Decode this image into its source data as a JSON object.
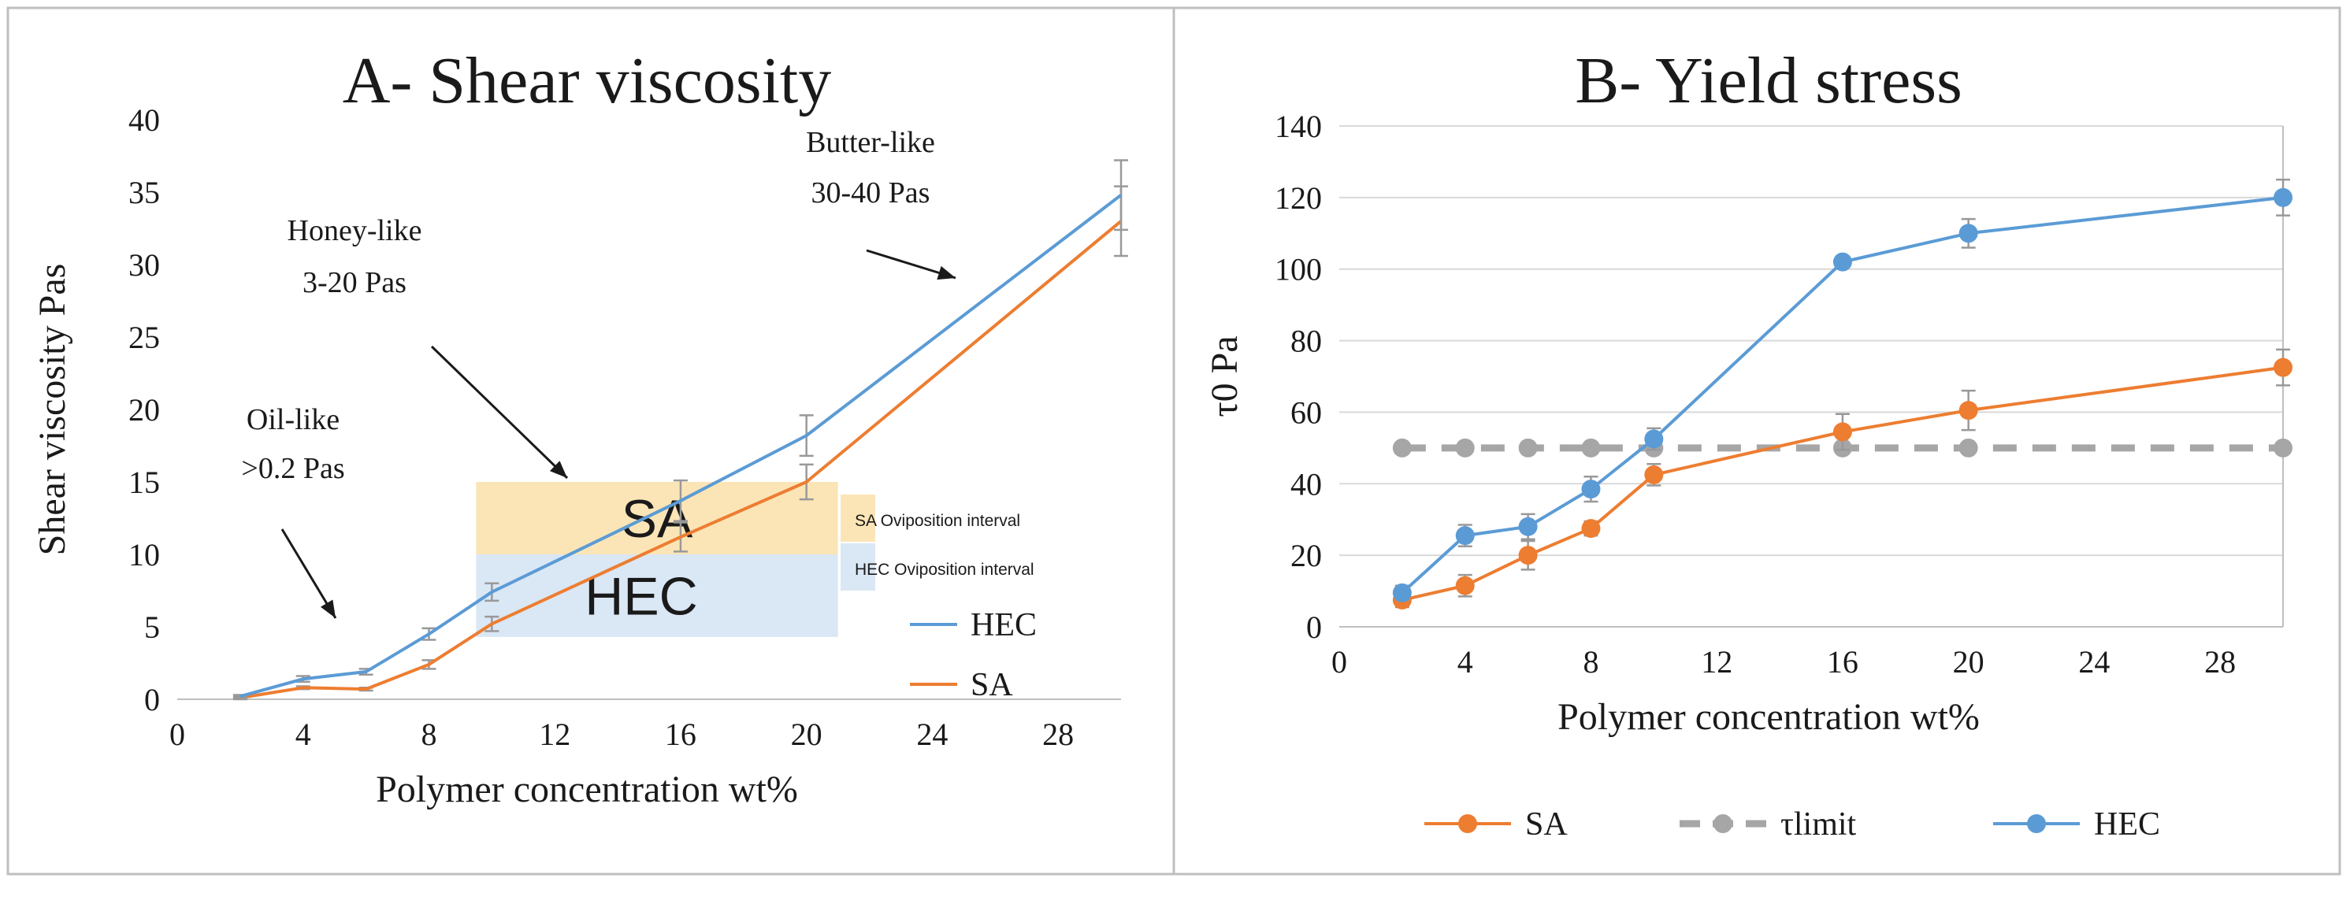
{
  "chart_data": [
    {
      "type": "line",
      "title": "A- Shear viscosity",
      "xlabel": "Polymer concentration wt%",
      "ylabel": "Shear viscosity Pas",
      "xlim": [
        0,
        30
      ],
      "ylim": [
        0,
        40
      ],
      "xticks": [
        "0",
        "4",
        "8",
        "12",
        "16",
        "20",
        "24",
        "28"
      ],
      "yticks": [
        "0",
        "5",
        "10",
        "15",
        "20",
        "25",
        "30",
        "35",
        "40"
      ],
      "series": [
        {
          "name": "HEC",
          "color": "#5b9bd5",
          "x": [
            2,
            4,
            6,
            8,
            10,
            16,
            20,
            30
          ],
          "y": [
            0.2,
            1.4,
            1.9,
            4.5,
            7.4,
            13.7,
            18.2,
            34.8
          ],
          "err": [
            0.1,
            0.2,
            0.2,
            0.4,
            0.6,
            1.4,
            1.4,
            2.4
          ]
        },
        {
          "name": "SA",
          "color": "#ed7d31",
          "x": [
            2,
            4,
            6,
            8,
            10,
            16,
            20,
            30
          ],
          "y": [
            0.1,
            0.8,
            0.7,
            2.4,
            5.2,
            11.2,
            15.0,
            33.0
          ],
          "err": [
            0.1,
            0.1,
            0.1,
            0.3,
            0.5,
            1.0,
            1.2,
            2.4
          ]
        }
      ],
      "legend": [
        {
          "label": "HEC",
          "color": "#5b9bd5"
        },
        {
          "label": "SA",
          "color": "#ed7d31"
        }
      ],
      "regions": [
        {
          "label": "SA",
          "color": "#fbe5b6",
          "x": [
            9.5,
            21
          ],
          "y": [
            10,
            15
          ]
        },
        {
          "label": "HEC",
          "color": "#dae7f5",
          "x": [
            9.5,
            21
          ],
          "y": [
            4.3,
            10
          ]
        }
      ],
      "region_legend": [
        {
          "label": "SA Oviposition interval",
          "color": "#fbe5b6"
        },
        {
          "label": "HEC Oviposition interval",
          "color": "#dae7f5"
        }
      ],
      "annotations": [
        {
          "line1": "Oil-like",
          "line2": ">0.2 Pas"
        },
        {
          "line1": "Honey-like",
          "line2": "3-20 Pas"
        },
        {
          "line1": "Butter-like",
          "line2": "30-40 Pas"
        }
      ]
    },
    {
      "type": "line",
      "title": "B- Yield stress",
      "xlabel": "Polymer concentration wt%",
      "ylabel": "τ0 Pa",
      "xlim": [
        0,
        30
      ],
      "ylim": [
        0,
        140
      ],
      "xticks": [
        "0",
        "4",
        "8",
        "12",
        "16",
        "20",
        "24",
        "28"
      ],
      "yticks": [
        "0",
        "20",
        "40",
        "60",
        "80",
        "100",
        "120",
        "140"
      ],
      "series": [
        {
          "name": "SA",
          "color": "#ed7d31",
          "dash": false,
          "x": [
            2,
            4,
            6,
            8,
            10,
            16,
            20,
            30
          ],
          "y": [
            7.5,
            11.5,
            20,
            27.5,
            42.5,
            54.5,
            60.5,
            72.5
          ],
          "err": [
            2,
            3,
            4,
            2,
            3,
            5,
            5.5,
            5
          ]
        },
        {
          "name": "τlimit",
          "color": "#a6a6a6",
          "dash": true,
          "x": [
            2,
            4,
            6,
            8,
            10,
            16,
            20,
            30
          ],
          "y": [
            50,
            50,
            50,
            50,
            50,
            50,
            50,
            50
          ],
          "err": [
            0,
            0,
            0,
            0,
            0,
            0,
            0,
            0
          ]
        },
        {
          "name": "HEC",
          "color": "#5b9bd5",
          "dash": false,
          "x": [
            2,
            4,
            6,
            8,
            10,
            16,
            20,
            30
          ],
          "y": [
            9.5,
            25.5,
            28,
            38.5,
            52.5,
            102,
            110,
            120
          ],
          "err": [
            2,
            3,
            3.5,
            3.5,
            3,
            1.5,
            4,
            5
          ]
        }
      ],
      "legend": [
        {
          "label": "SA",
          "color": "#ed7d31",
          "dash": false
        },
        {
          "label": "τlimit",
          "color": "#a6a6a6",
          "dash": true
        },
        {
          "label": "HEC",
          "color": "#5b9bd5",
          "dash": false
        }
      ]
    }
  ]
}
